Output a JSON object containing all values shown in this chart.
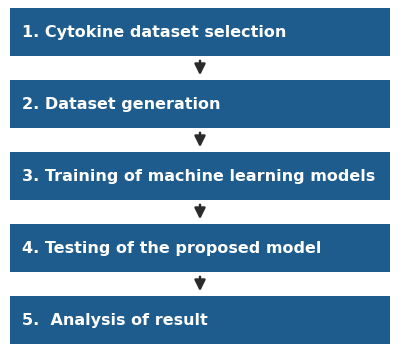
{
  "steps": [
    "1. Cytokine dataset selection",
    "2. Dataset generation",
    "3. Training of machine learning models",
    "4. Testing of the proposed model",
    "5.  Analysis of result"
  ],
  "box_color": "#1e5c8e",
  "text_color": "#ffffff",
  "arrow_color": "#2b2b2b",
  "bg_color": "#ffffff",
  "font_size": 11.5,
  "fig_width": 4.0,
  "fig_height": 3.52,
  "dpi": 100
}
